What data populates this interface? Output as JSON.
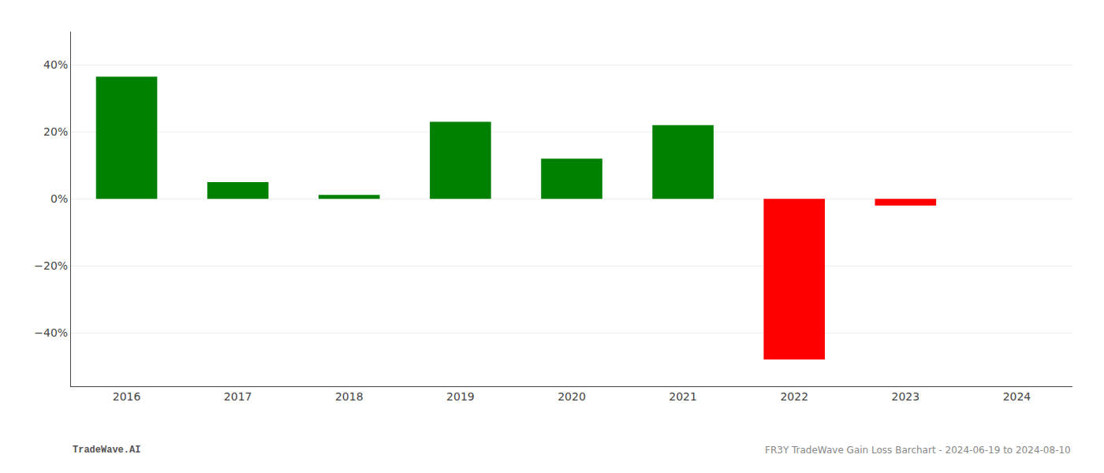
{
  "chart_data": {
    "type": "bar",
    "categories": [
      "2016",
      "2017",
      "2018",
      "2019",
      "2020",
      "2021",
      "2022",
      "2023",
      "2024"
    ],
    "values": [
      0.365,
      0.05,
      0.012,
      0.23,
      0.12,
      0.22,
      -0.48,
      -0.02,
      0.0
    ],
    "colors": [
      "#008000",
      "#008000",
      "#008000",
      "#008000",
      "#008000",
      "#008000",
      "#ff0000",
      "#ff0000",
      "#ffffff"
    ],
    "ylim": [
      -0.56,
      0.5
    ],
    "yticks": [
      {
        "value": -0.4,
        "label": "−40%"
      },
      {
        "value": -0.2,
        "label": "−20%"
      },
      {
        "value": 0.0,
        "label": "0%"
      },
      {
        "value": 0.2,
        "label": "20%"
      },
      {
        "value": 0.4,
        "label": "40%"
      }
    ],
    "grid": true,
    "annotations": [
      "TradeWave.AI",
      "FR3Y TradeWave Gain Loss Barchart - 2024-06-19 to 2024-08-10"
    ]
  }
}
